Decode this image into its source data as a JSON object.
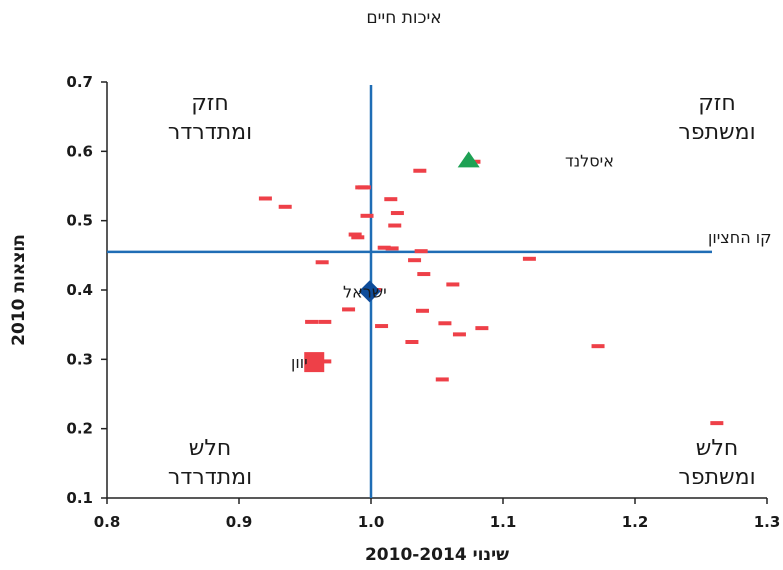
{
  "chart_data": {
    "type": "scatter",
    "title": "איכות חיים",
    "xlabel": "שינוי 2010-2014",
    "ylabel": "תוצאות 2010",
    "xlim": [
      0.8,
      1.3
    ],
    "ylim": [
      0.1,
      0.7
    ],
    "x_ticks": [
      "0.8",
      "0.9",
      "1.0",
      "1.1",
      "1.2",
      "1.3"
    ],
    "y_ticks": [
      "0.1",
      "0.2",
      "0.3",
      "0.4",
      "0.5",
      "0.6",
      "0.7"
    ],
    "grid": false,
    "reference_lines": {
      "vertical_x": 1.0,
      "horizontal_y": 0.455,
      "horizontal_label": "קו החציון"
    },
    "quadrant_labels": {
      "top_left": [
        "חזק",
        "ומתדרדר"
      ],
      "top_right": [
        "חזק",
        "ומשתפר"
      ],
      "bottom_left": [
        "חלש",
        "ומתדרדר"
      ],
      "bottom_right": [
        "חלש",
        "ומשתפר"
      ]
    },
    "colors": {
      "axis_lines": "#1f6db5",
      "points": "#ee4048",
      "iceland": "#1ea154",
      "israel": "#0e4c9a",
      "greece": "#ee4048"
    },
    "series": [
      {
        "marker": "dash",
        "points": [
          [
            0.993,
            0.548
          ],
          [
            0.995,
            0.548
          ],
          [
            1.037,
            0.572
          ],
          [
            1.078,
            0.585
          ],
          [
            0.92,
            0.532
          ],
          [
            0.935,
            0.52
          ],
          [
            1.015,
            0.531
          ],
          [
            1.02,
            0.511
          ],
          [
            0.997,
            0.507
          ],
          [
            1.018,
            0.493
          ],
          [
            0.988,
            0.48
          ],
          [
            0.99,
            0.476
          ],
          [
            1.01,
            0.461
          ],
          [
            1.016,
            0.46
          ],
          [
            1.038,
            0.456
          ],
          [
            1.033,
            0.443
          ],
          [
            1.12,
            0.445
          ],
          [
            0.963,
            0.44
          ],
          [
            1.04,
            0.423
          ],
          [
            1.062,
            0.408
          ],
          [
            1.003,
            0.4
          ],
          [
            0.983,
            0.372
          ],
          [
            1.039,
            0.37
          ],
          [
            0.955,
            0.354
          ],
          [
            0.965,
            0.354
          ],
          [
            1.008,
            0.348
          ],
          [
            1.056,
            0.352
          ],
          [
            1.084,
            0.345
          ],
          [
            1.067,
            0.336
          ],
          [
            1.031,
            0.325
          ],
          [
            1.172,
            0.319
          ],
          [
            0.965,
            0.297
          ],
          [
            1.054,
            0.271
          ],
          [
            1.262,
            0.208
          ]
        ]
      },
      {
        "name": "איסלנד",
        "marker": "triangle",
        "points": [
          [
            1.074,
            0.587
          ]
        ]
      },
      {
        "name": "ישראל",
        "marker": "diamond",
        "points": [
          [
            0.999,
            0.398
          ]
        ]
      },
      {
        "name": "יוון",
        "marker": "square",
        "points": [
          [
            0.957,
            0.296
          ]
        ]
      }
    ]
  }
}
